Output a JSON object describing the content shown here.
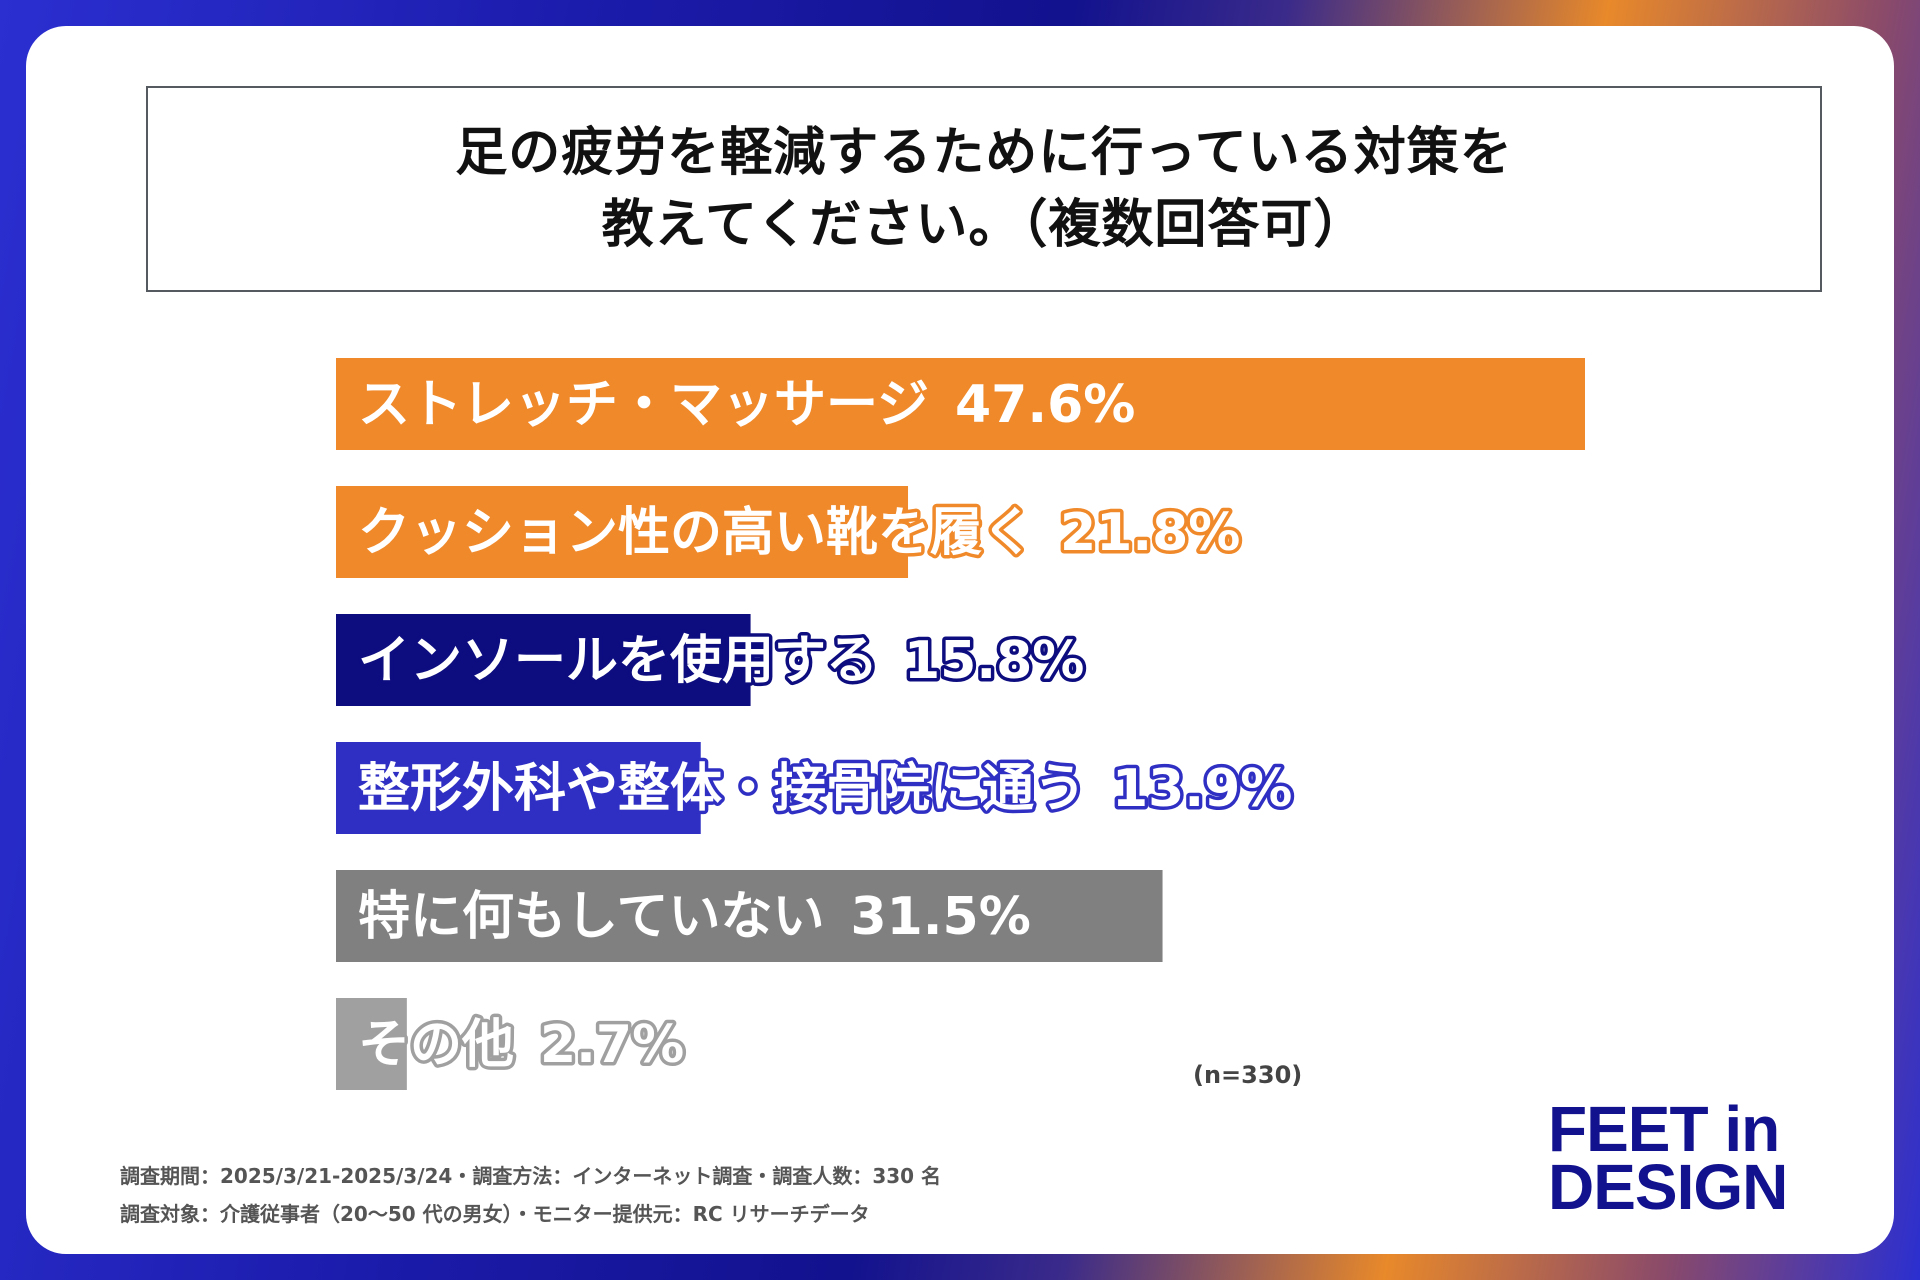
{
  "title": {
    "line1": "足の疲労を軽減するために行っている対策を",
    "line2": "教えてください。（複数回答可）"
  },
  "chart_data": {
    "type": "bar",
    "orientation": "horizontal",
    "categories": [
      "ストレッチ・マッサージ",
      "クッション性の高い靴を履く",
      "インソールを使用する",
      "整形外科や整体・接骨院に通う",
      "特に何もしていない",
      "その他"
    ],
    "values": [
      47.6,
      21.8,
      15.8,
      13.9,
      31.5,
      2.7
    ],
    "value_labels": [
      "47.6%",
      "21.8%",
      "15.8%",
      "13.9%",
      "31.5%",
      "2.7%"
    ],
    "bar_colors": [
      "#f0892a",
      "#f0892a",
      "#0d0d80",
      "#2f2fc4",
      "#808080",
      "#a0a0a0"
    ],
    "xlim": [
      0,
      47.6
    ],
    "grid": false
  },
  "sample_note": "(n=330)",
  "footnotes": {
    "line1": "調査期間：2025/3/21-2025/3/24・調査方法：インターネット調査・調査人数：330 名",
    "line2": "調査対象：介護従事者（20～50 代の男女）・モニター提供元：RC リサーチデータ"
  },
  "logo": {
    "line1": "FEET in",
    "line2": "DESIGN"
  }
}
